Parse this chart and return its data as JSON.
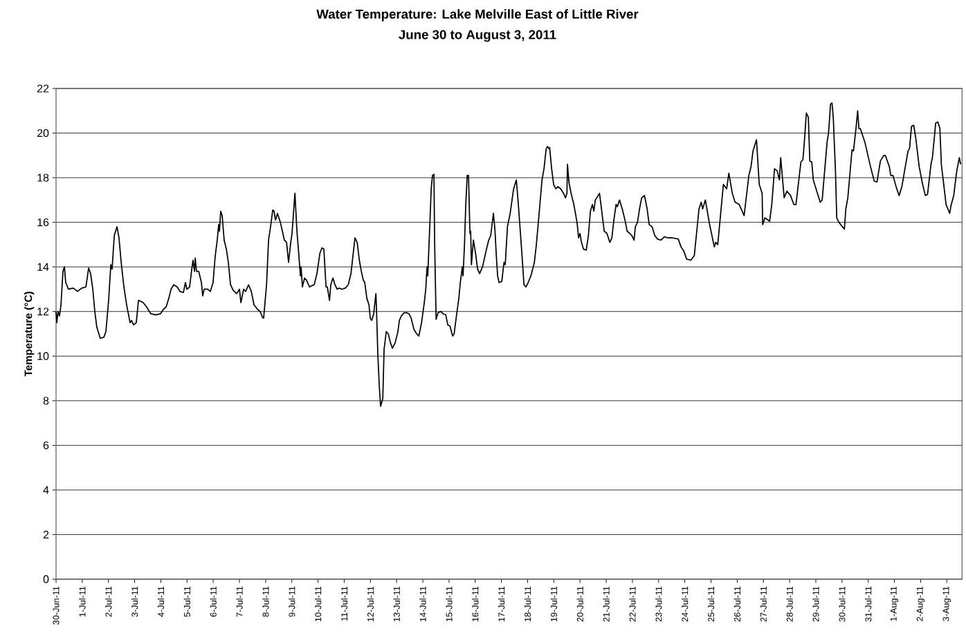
{
  "chart_data": {
    "type": "line",
    "title": "Water Temperature: Lake Melville East of Little River",
    "subtitle": "June 30 to August 3, 2011",
    "ylabel": "Temperature (°C)",
    "series": [
      {
        "color": "#000000",
        "x": [
          "2011-06-30T00:00",
          "2011-06-30T00:40",
          "2011-06-30T01:50",
          "2011-06-30T03:10",
          "2011-06-30T04:30",
          "2011-06-30T06:20",
          "2011-06-30T07:40",
          "2011-06-30T08:50",
          "2011-06-30T11:20",
          "2011-06-30T15:50",
          "2011-06-30T19:40",
          "2011-06-30T23:30",
          "2011-07-01T03:20",
          "2011-07-01T05:50",
          "2011-07-01T07:40",
          "2011-07-01T09:40",
          "2011-07-01T11:30",
          "2011-07-01T13:20",
          "2011-07-01T16:30",
          "2011-07-01T19:50",
          "2011-07-01T21:40",
          "2011-07-02T00:10",
          "2011-07-02T02:10",
          "2011-07-02T03:20",
          "2011-07-02T05:20",
          "2011-07-02T07:50",
          "2011-07-02T09:40",
          "2011-07-02T11:40",
          "2011-07-02T14:10",
          "2011-07-02T16:40",
          "2011-07-02T19:50",
          "2011-07-02T21:10",
          "2011-07-02T23:00",
          "2011-07-03T01:30",
          "2011-07-03T03:30",
          "2011-07-03T07:50",
          "2011-07-03T11:00",
          "2011-07-03T14:50",
          "2011-07-03T19:20",
          "2011-07-03T23:40",
          "2011-07-04T02:20",
          "2011-07-04T04:50",
          "2011-07-04T07:20",
          "2011-07-04T09:20",
          "2011-07-04T11:50",
          "2011-07-04T15:00",
          "2011-07-04T17:30",
          "2011-07-04T20:40",
          "2011-07-04T22:30",
          "2011-07-04T23:50",
          "2011-07-05T02:20",
          "2011-07-05T04:20",
          "2011-07-05T05:30",
          "2011-07-05T06:50",
          "2011-07-05T07:30",
          "2011-07-05T08:40",
          "2011-07-05T10:40",
          "2011-07-05T13:10",
          "2011-07-05T14:20",
          "2011-07-05T15:40",
          "2011-07-05T18:50",
          "2011-07-05T21:20",
          "2011-07-05T23:50",
          "2011-07-06T01:50",
          "2011-07-06T03:40",
          "2011-07-06T05:00",
          "2011-07-06T05:40",
          "2011-07-06T06:50",
          "2011-07-06T08:10",
          "2011-07-06T10:00",
          "2011-07-06T12:00",
          "2011-07-06T13:50",
          "2011-07-06T15:50",
          "2011-07-06T18:20",
          "2011-07-06T21:30",
          "2011-07-07T00:00",
          "2011-07-07T01:20",
          "2011-07-07T03:50",
          "2011-07-07T05:40",
          "2011-07-07T08:20",
          "2011-07-07T10:50",
          "2011-07-07T13:20",
          "2011-07-07T16:30",
          "2011-07-07T19:00",
          "2011-07-07T21:00",
          "2011-07-07T22:10",
          "2011-07-08T00:50",
          "2011-07-08T02:40",
          "2011-07-08T04:30",
          "2011-07-08T06:30",
          "2011-07-08T07:40",
          "2011-07-08T09:00",
          "2011-07-08T10:50",
          "2011-07-08T13:30",
          "2011-07-08T15:20",
          "2011-07-08T17:10",
          "2011-07-08T19:10",
          "2011-07-08T21:00",
          "2011-07-08T23:00",
          "2011-07-09T00:10",
          "2011-07-09T02:50",
          "2011-07-09T04:40",
          "2011-07-09T05:50",
          "2011-07-09T07:50",
          "2011-07-09T08:30",
          "2011-07-09T09:40",
          "2011-07-09T11:40",
          "2011-07-09T13:30",
          "2011-07-09T16:10",
          "2011-07-09T18:00",
          "2011-07-09T20:30",
          "2011-07-09T23:00",
          "2011-07-10T01:40",
          "2011-07-10T03:30",
          "2011-07-10T05:20",
          "2011-07-10T07:20",
          "2011-07-10T08:30",
          "2011-07-10T10:30",
          "2011-07-10T11:40",
          "2011-07-10T13:40",
          "2011-07-10T15:30",
          "2011-07-10T17:30",
          "2011-07-10T19:20",
          "2011-07-10T21:50",
          "2011-07-11T01:00",
          "2011-07-11T03:40",
          "2011-07-11T06:10",
          "2011-07-11T08:40",
          "2011-07-11T09:50",
          "2011-07-11T11:50",
          "2011-07-11T13:50",
          "2011-07-11T15:40",
          "2011-07-11T17:30",
          "2011-07-11T18:50",
          "2011-07-11T20:40",
          "2011-07-11T22:40",
          "2011-07-11T23:50",
          "2011-07-12T01:10",
          "2011-07-12T03:00",
          "2011-07-12T05:00",
          "2011-07-12T05:30",
          "2011-07-12T06:50",
          "2011-07-12T08:10",
          "2011-07-12T09:20",
          "2011-07-12T11:20",
          "2011-07-12T12:30",
          "2011-07-12T14:30",
          "2011-07-12T16:20",
          "2011-07-12T18:20",
          "2011-07-12T20:10",
          "2011-07-12T22:40",
          "2011-07-13T01:10",
          "2011-07-13T02:30",
          "2011-07-13T04:20",
          "2011-07-13T07:00",
          "2011-07-13T08:50",
          "2011-07-13T11:20",
          "2011-07-13T13:20",
          "2011-07-13T15:50",
          "2011-07-13T18:20",
          "2011-07-13T20:20",
          "2011-07-13T22:50",
          "2011-07-14T01:20",
          "2011-07-14T02:40",
          "2011-07-14T03:50",
          "2011-07-14T04:30",
          "2011-07-14T06:20",
          "2011-07-14T07:40",
          "2011-07-14T08:50",
          "2011-07-14T10:10",
          "2011-07-14T10:50",
          "2011-07-14T12:10",
          "2011-07-14T14:00",
          "2011-07-14T16:30",
          "2011-07-14T18:30",
          "2011-07-14T21:00",
          "2011-07-14T22:50",
          "2011-07-15T00:50",
          "2011-07-15T03:20",
          "2011-07-15T04:40",
          "2011-07-15T06:30",
          "2011-07-15T09:00",
          "2011-07-15T10:20",
          "2011-07-15T12:10",
          "2011-07-15T12:50",
          "2011-07-15T14:10",
          "2011-07-15T15:20",
          "2011-07-15T16:40",
          "2011-07-15T17:50",
          "2011-07-15T19:10",
          "2011-07-15T19:50",
          "2011-07-15T20:30",
          "2011-07-15T22:20",
          "2011-07-16T00:20",
          "2011-07-16T02:10",
          "2011-07-16T04:00",
          "2011-07-16T06:40",
          "2011-07-16T08:30",
          "2011-07-16T10:20",
          "2011-07-16T12:20",
          "2011-07-16T14:10",
          "2011-07-16T16:40",
          "2011-07-16T18:00",
          "2011-07-16T19:20",
          "2011-07-16T20:30",
          "2011-07-16T21:50",
          "2011-07-17T00:20",
          "2011-07-17T02:20",
          "2011-07-17T03:30",
          "2011-07-17T05:30",
          "2011-07-17T08:00",
          "2011-07-17T11:10",
          "2011-07-17T13:40",
          "2011-07-17T15:30",
          "2011-07-17T18:10",
          "2011-07-17T20:40",
          "2011-07-17T22:30",
          "2011-07-18T00:30",
          "2011-07-18T03:00",
          "2011-07-18T06:10",
          "2011-07-18T08:00",
          "2011-07-18T10:00",
          "2011-07-18T13:10",
          "2011-07-18T15:00",
          "2011-07-18T17:00",
          "2011-07-18T18:10",
          "2011-07-18T19:30",
          "2011-07-18T20:10",
          "2011-07-18T22:00",
          "2011-07-18T23:50",
          "2011-07-19T01:50",
          "2011-07-19T03:40",
          "2011-07-19T06:20",
          "2011-07-19T08:50",
          "2011-07-19T10:40",
          "2011-07-19T12:00",
          "2011-07-19T12:30",
          "2011-07-19T13:50",
          "2011-07-19T15:50",
          "2011-07-19T18:20",
          "2011-07-19T20:10",
          "2011-07-19T21:30",
          "2011-07-19T22:40",
          "2011-07-20T00:00",
          "2011-07-20T01:20",
          "2011-07-20T03:10",
          "2011-07-20T05:40",
          "2011-07-20T07:40",
          "2011-07-20T09:30",
          "2011-07-20T11:20",
          "2011-07-20T12:40",
          "2011-07-20T14:00",
          "2011-07-20T17:50",
          "2011-07-20T19:40",
          "2011-07-20T22:10",
          "2011-07-21T00:40",
          "2011-07-21T03:20",
          "2011-07-21T05:10",
          "2011-07-21T07:00",
          "2011-07-21T09:00",
          "2011-07-21T10:10",
          "2011-07-21T12:10",
          "2011-07-21T14:40",
          "2011-07-21T17:10",
          "2011-07-21T19:10",
          "2011-07-21T21:40",
          "2011-07-21T23:30",
          "2011-07-22T01:30",
          "2011-07-22T02:40",
          "2011-07-22T04:40",
          "2011-07-22T06:30",
          "2011-07-22T08:30",
          "2011-07-22T11:00",
          "2011-07-22T13:30",
          "2011-07-22T15:20",
          "2011-07-22T18:00",
          "2011-07-22T20:30",
          "2011-07-22T23:00",
          "2011-07-23T02:10",
          "2011-07-23T05:20",
          "2011-07-23T08:30",
          "2011-07-23T13:00",
          "2011-07-23T18:00",
          "2011-07-23T20:30",
          "2011-07-23T23:10",
          "2011-07-24T01:40",
          "2011-07-24T05:30",
          "2011-07-24T08:40",
          "2011-07-24T13:00",
          "2011-07-24T15:00",
          "2011-07-24T16:20",
          "2011-07-24T18:50",
          "2011-07-24T22:30",
          "2011-07-25T03:00",
          "2011-07-25T04:20",
          "2011-07-25T06:10",
          "2011-07-25T11:20",
          "2011-07-25T14:20",
          "2011-07-25T16:20",
          "2011-07-25T19:30",
          "2011-07-25T22:00",
          "2011-07-26T01:50",
          "2011-07-26T06:20",
          "2011-07-26T10:40",
          "2011-07-26T12:40",
          "2011-07-26T14:30",
          "2011-07-26T17:40",
          "2011-07-26T20:10",
          "2011-07-26T22:50",
          "2011-07-26T23:20",
          "2011-07-27T01:20",
          "2011-07-27T05:40",
          "2011-07-27T07:40",
          "2011-07-27T10:10",
          "2011-07-27T12:40",
          "2011-07-27T14:40",
          "2011-07-27T15:50",
          "2011-07-27T19:00",
          "2011-07-27T21:30",
          "2011-07-28T00:50",
          "2011-07-28T03:50",
          "2011-07-28T05:50",
          "2011-07-28T10:20",
          "2011-07-28T12:10",
          "2011-07-28T13:20",
          "2011-07-28T15:20",
          "2011-07-28T17:10",
          "2011-07-28T18:30",
          "2011-07-28T20:20",
          "2011-07-28T21:40",
          "2011-07-29T04:00",
          "2011-07-29T05:50",
          "2011-07-29T10:20",
          "2011-07-29T11:40",
          "2011-07-29T13:30",
          "2011-07-29T14:50",
          "2011-07-29T16:00",
          "2011-07-29T18:00",
          "2011-07-29T19:10",
          "2011-07-29T21:10",
          "2011-07-30T00:20",
          "2011-07-30T02:10",
          "2011-07-30T03:30",
          "2011-07-30T05:20",
          "2011-07-30T09:10",
          "2011-07-30T10:30",
          "2011-07-30T13:00",
          "2011-07-30T14:20",
          "2011-07-30T15:30",
          "2011-07-30T16:50",
          "2011-07-30T21:10",
          "2011-07-31T02:20",
          "2011-07-31T05:30",
          "2011-07-31T08:00",
          "2011-07-31T11:10",
          "2011-07-31T14:20",
          "2011-07-31T15:40",
          "2011-07-31T19:20",
          "2011-07-31T20:40",
          "2011-07-31T22:40",
          "2011-08-01T01:50",
          "2011-08-01T04:20",
          "2011-08-01T06:50",
          "2011-08-01T10:00",
          "2011-08-01T12:30",
          "2011-08-01T13:50",
          "2011-08-01T15:40",
          "2011-08-01T17:40",
          "2011-08-01T19:30",
          "2011-08-01T22:40",
          "2011-08-02T01:50",
          "2011-08-02T04:20",
          "2011-08-02T06:20",
          "2011-08-02T09:30",
          "2011-08-02T10:50",
          "2011-08-02T13:50",
          "2011-08-02T15:50",
          "2011-08-02T17:40",
          "2011-08-02T19:00",
          "2011-08-02T23:20",
          "2011-08-03T02:40",
          "2011-08-03T03:50",
          "2011-08-03T06:20",
          "2011-08-03T08:50",
          "2011-08-03T09:30",
          "2011-08-03T11:30",
          "2011-08-03T12:40"
        ],
        "values": [
          12.0,
          11.5,
          12.0,
          11.8,
          12.3,
          13.8,
          14.0,
          13.3,
          13.0,
          13.05,
          12.9,
          13.05,
          13.1,
          13.95,
          13.7,
          13.0,
          12.0,
          11.3,
          10.8,
          10.85,
          11.1,
          12.5,
          14.1,
          13.9,
          15.4,
          15.8,
          15.3,
          14.2,
          13.1,
          12.3,
          11.5,
          11.6,
          11.4,
          11.5,
          12.5,
          12.4,
          12.2,
          11.9,
          11.85,
          11.9,
          12.1,
          12.2,
          12.6,
          13.0,
          13.2,
          13.1,
          12.9,
          12.85,
          13.3,
          13.0,
          13.1,
          13.9,
          14.3,
          13.8,
          14.4,
          13.8,
          13.8,
          13.3,
          12.7,
          13.0,
          13.0,
          12.9,
          13.3,
          14.5,
          15.2,
          15.9,
          15.6,
          16.5,
          16.3,
          15.2,
          14.8,
          14.2,
          13.2,
          12.95,
          12.8,
          13.0,
          12.4,
          13.0,
          12.9,
          13.2,
          12.9,
          12.3,
          12.1,
          12.0,
          11.75,
          11.7,
          13.2,
          15.2,
          15.8,
          16.55,
          16.5,
          16.1,
          16.4,
          16.0,
          15.6,
          15.2,
          15.1,
          14.2,
          15.1,
          15.5,
          17.3,
          15.6,
          14.9,
          13.6,
          14.0,
          13.1,
          13.5,
          13.4,
          13.1,
          13.15,
          13.2,
          13.7,
          14.6,
          14.85,
          14.8,
          13.1,
          13.1,
          12.5,
          13.2,
          13.5,
          13.2,
          13.0,
          13.05,
          13.0,
          13.05,
          13.2,
          13.7,
          14.8,
          15.3,
          15.1,
          14.3,
          13.8,
          13.4,
          13.3,
          12.6,
          12.3,
          11.7,
          11.6,
          11.9,
          12.8,
          12.2,
          10.0,
          8.6,
          7.75,
          8.1,
          10.3,
          11.1,
          11.0,
          10.6,
          10.35,
          10.6,
          11.1,
          11.6,
          11.8,
          11.95,
          11.95,
          11.9,
          11.7,
          11.2,
          11.0,
          10.9,
          11.5,
          12.4,
          13.0,
          14.0,
          13.6,
          15.8,
          17.5,
          18.1,
          18.15,
          15.0,
          11.65,
          11.95,
          12.0,
          11.9,
          11.85,
          11.4,
          11.35,
          10.9,
          11.0,
          11.7,
          12.6,
          13.3,
          14.0,
          13.6,
          15.0,
          16.8,
          18.1,
          18.1,
          15.5,
          15.6,
          14.1,
          15.2,
          14.6,
          13.9,
          13.7,
          14.0,
          14.4,
          14.8,
          15.2,
          15.4,
          16.4,
          15.7,
          14.5,
          13.6,
          13.3,
          13.35,
          14.2,
          14.1,
          15.8,
          16.4,
          17.5,
          17.9,
          16.8,
          15.0,
          13.2,
          13.1,
          13.3,
          13.6,
          14.2,
          15.0,
          16.1,
          17.9,
          18.4,
          19.3,
          19.4,
          19.3,
          19.35,
          18.4,
          17.7,
          17.5,
          17.6,
          17.5,
          17.3,
          17.1,
          17.3,
          18.6,
          17.8,
          17.3,
          16.8,
          16.3,
          15.9,
          15.3,
          15.5,
          15.1,
          14.8,
          14.75,
          15.4,
          16.5,
          16.8,
          16.5,
          17.0,
          17.3,
          16.6,
          15.6,
          15.5,
          15.1,
          15.3,
          16.1,
          16.8,
          16.7,
          17.0,
          16.6,
          16.1,
          15.6,
          15.5,
          15.4,
          15.2,
          15.8,
          16.0,
          16.6,
          17.1,
          17.2,
          16.6,
          15.9,
          15.8,
          15.4,
          15.25,
          15.2,
          15.35,
          15.3,
          15.3,
          15.25,
          14.9,
          14.7,
          14.35,
          14.3,
          14.5,
          16.6,
          16.9,
          16.6,
          17.0,
          15.95,
          14.9,
          15.1,
          15.0,
          17.7,
          17.5,
          18.2,
          17.3,
          16.9,
          16.8,
          16.3,
          18.1,
          18.5,
          19.2,
          19.7,
          17.7,
          17.3,
          15.9,
          16.2,
          16.05,
          16.8,
          18.4,
          18.3,
          17.9,
          18.9,
          17.1,
          17.4,
          17.2,
          16.8,
          16.8,
          18.7,
          18.8,
          19.5,
          20.9,
          20.7,
          18.75,
          18.7,
          17.9,
          16.9,
          17.0,
          19.6,
          20.0,
          21.3,
          21.35,
          20.7,
          18.3,
          16.2,
          16.0,
          15.8,
          15.7,
          16.6,
          17.1,
          19.25,
          19.2,
          20.3,
          21.0,
          20.2,
          20.2,
          19.55,
          18.45,
          17.85,
          17.8,
          18.75,
          19.0,
          19.0,
          18.5,
          18.1,
          18.1,
          17.55,
          17.2,
          17.6,
          18.5,
          19.2,
          19.3,
          20.3,
          20.35,
          19.8,
          18.5,
          17.7,
          17.2,
          17.25,
          18.6,
          18.9,
          20.45,
          20.5,
          20.2,
          18.6,
          16.8,
          16.4,
          16.75,
          17.2,
          18.2,
          18.4,
          18.9,
          18.6
        ]
      }
    ],
    "xlim": [
      "2011-06-30T00:00",
      "2011-08-03T14:00"
    ],
    "xticks": [
      {
        "value": "2011-06-30",
        "label": "30-Jun-11"
      },
      {
        "value": "2011-07-01",
        "label": "1-Jul-11"
      },
      {
        "value": "2011-07-02",
        "label": "2-Jul-11"
      },
      {
        "value": "2011-07-03",
        "label": "3-Jul-11"
      },
      {
        "value": "2011-07-04",
        "label": "4-Jul-11"
      },
      {
        "value": "2011-07-05",
        "label": "5-Jul-11"
      },
      {
        "value": "2011-07-06",
        "label": "6-Jul-11"
      },
      {
        "value": "2011-07-07",
        "label": "7-Jul-11"
      },
      {
        "value": "2011-07-08",
        "label": "8-Jul-11"
      },
      {
        "value": "2011-07-09",
        "label": "9-Jul-11"
      },
      {
        "value": "2011-07-10",
        "label": "10-Jul-11"
      },
      {
        "value": "2011-07-11",
        "label": "11-Jul-11"
      },
      {
        "value": "2011-07-12",
        "label": "12-Jul-11"
      },
      {
        "value": "2011-07-13",
        "label": "13-Jul-11"
      },
      {
        "value": "2011-07-14",
        "label": "14-Jul-11"
      },
      {
        "value": "2011-07-15",
        "label": "15-Jul-11"
      },
      {
        "value": "2011-07-16",
        "label": "16-Jul-11"
      },
      {
        "value": "2011-07-17",
        "label": "17-Jul-11"
      },
      {
        "value": "2011-07-18",
        "label": "18-Jul-11"
      },
      {
        "value": "2011-07-19",
        "label": "19-Jul-11"
      },
      {
        "value": "2011-07-20",
        "label": "20-Jul-11"
      },
      {
        "value": "2011-07-21",
        "label": "21-Jul-11"
      },
      {
        "value": "2011-07-22",
        "label": "22-Jul-11"
      },
      {
        "value": "2011-07-23",
        "label": "23-Jul-11"
      },
      {
        "value": "2011-07-24",
        "label": "24-Jul-11"
      },
      {
        "value": "2011-07-25",
        "label": "25-Jul-11"
      },
      {
        "value": "2011-07-26",
        "label": "26-Jul-11"
      },
      {
        "value": "2011-07-27",
        "label": "27-Jul-11"
      },
      {
        "value": "2011-07-28",
        "label": "28-Jul-11"
      },
      {
        "value": "2011-07-29",
        "label": "29-Jul-11"
      },
      {
        "value": "2011-07-30",
        "label": "30-Jul-11"
      },
      {
        "value": "2011-07-31",
        "label": "31-Jul-11"
      },
      {
        "value": "2011-08-01",
        "label": "1-Aug-11"
      },
      {
        "value": "2011-08-02",
        "label": "2-Aug-11"
      },
      {
        "value": "2011-08-03",
        "label": "3-Aug-11"
      }
    ],
    "ylim": [
      0,
      22
    ],
    "yticks": [
      0,
      2,
      4,
      6,
      8,
      10,
      12,
      14,
      16,
      18,
      20,
      22
    ],
    "grid": "y",
    "legend": false,
    "marker": "none",
    "line_style": "solid"
  }
}
